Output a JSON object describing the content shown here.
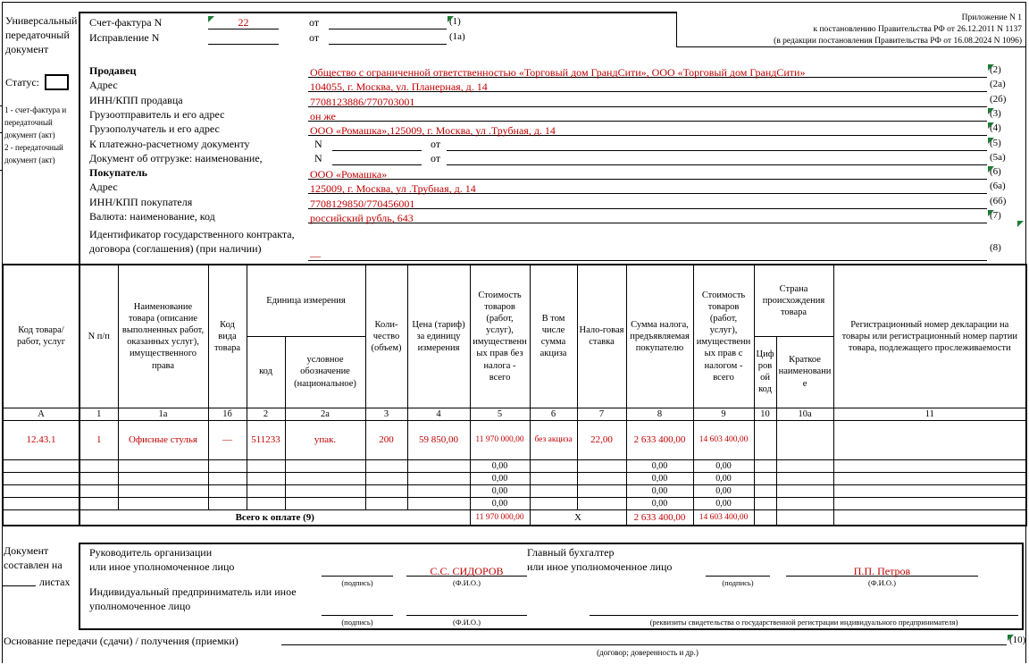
{
  "colors": {
    "value_red": "#C00000",
    "flag_green": "#1E7B34"
  },
  "sidebar": {
    "title": "Универсальный передаточный документ",
    "status_label": "Статус:",
    "status_value": "",
    "note_1": "1 - счет-фактура и передаточный документ (акт)",
    "note_2": "2 - передаточный документ (акт)"
  },
  "annotation": {
    "line_1": "Приложение N 1",
    "line_2": "к постановлению Правительства РФ от 26.12.2011 N 1137",
    "line_3": "(в редакции постановления Правительства РФ от 16.08.2024 N 1096)"
  },
  "invoice": {
    "label": "Счет-фактура N",
    "number": "22",
    "from_label": "от",
    "date": "",
    "marker": "(1)",
    "correction_label": "Исправление N",
    "correction_number": "",
    "correction_from_label": "от",
    "correction_date": "",
    "correction_marker": "(1а)"
  },
  "parties": {
    "rows": [
      {
        "label": "Продавец",
        "bold": true,
        "value": "Общество с ограниченной ответственностью «Торговый дом ГрандСити», ООО «Торговый дом ГрандСити»",
        "marker": "(2)",
        "flag": true
      },
      {
        "label": "Адрес",
        "value": "104055, г. Москва, ул. Планерная, д. 14",
        "marker": "(2а)"
      },
      {
        "label": "ИНН/КПП продавца",
        "value": "7708123886/770703001",
        "marker": "(2б)"
      },
      {
        "label": "Грузоотправитель и его адрес",
        "value": "он же",
        "marker": "(3)",
        "flag": true
      },
      {
        "label": "Грузополучатель и его адрес",
        "value": "ООО «Ромашка»,125009, г. Москва, ул .Трубная, д. 14",
        "marker": "(4)",
        "flag": true
      },
      {
        "label": "К платежно-расчетному документу",
        "type": "nfrom",
        "n_label": "N",
        "from_label": "от",
        "marker": "(5)",
        "flag": true
      },
      {
        "label": "Документ об отгрузке: наименование,",
        "type": "nfrom",
        "n_label": "N",
        "from_label": "от",
        "marker": "(5а)"
      },
      {
        "label": "Покупатель",
        "bold": true,
        "value": "ООО «Ромашка»",
        "marker": "(6)",
        "flag": true
      },
      {
        "label": "Адрес",
        "value": "125009, г. Москва, ул .Трубная, д. 14",
        "marker": "(6а)"
      },
      {
        "label": "ИНН/КПП покупателя",
        "value": "7708129850/770456001",
        "marker": "(6б)"
      },
      {
        "label": "Валюта: наименование, код",
        "value": "российский рубль, 643",
        "marker": "(7)",
        "flag": true
      }
    ],
    "contract_label_1": "Идентификатор государственного контракта,",
    "contract_label_2": "договора (соглашения) (при наличии)",
    "contract_value": "—",
    "contract_marker": "(8)"
  },
  "table": {
    "headers": {
      "col_a": "Код товара/ работ, услуг",
      "col_1": "N п/п",
      "col_1a": "Наименование товара (описание выполненных работ, оказанных услуг), имущественного права",
      "col_1b": "Код вида товара",
      "unit_group": "Единица измерения",
      "col_2": "код",
      "col_2a": "условное обозначение (национальное)",
      "col_3": "Коли-чество (объем)",
      "col_4": "Цена (тариф) за единицу измерения",
      "col_5": "Стоимость товаров (работ, услуг), имущественных прав без налога - всего",
      "col_6": "В том числе сумма акциза",
      "col_7": "Нало-говая ставка",
      "col_8": "Сумма налога, предъявляемая покупателю",
      "col_9": "Стоимость товаров (работ, услуг), имущественных прав с налогом - всего",
      "country_group": "Страна происхождения товара",
      "col_10": "Цифровой код",
      "col_10a": "Краткое наименование",
      "col_11": "Регистрационный номер декларации на товары или регистрационный номер партии товара, подлежащего прослеживаемости"
    },
    "col_numbers": [
      "А",
      "1",
      "1а",
      "1б",
      "2",
      "2а",
      "3",
      "4",
      "5",
      "6",
      "7",
      "8",
      "9",
      "10",
      "10а",
      "11"
    ],
    "number_row_flag_indices": [
      1,
      4,
      6,
      7,
      10
    ],
    "data_row_flag_indices": [
      1,
      4
    ],
    "row": {
      "code": "12.43.1",
      "num": "1",
      "name": "Офисные стулья",
      "kind_code": "—",
      "unit_code": "511233",
      "unit_name": "упак.",
      "qty": "200",
      "price": "59 850,00",
      "cost_wo_tax": "11 970 000,00",
      "excise": "без акциза",
      "tax_rate": "22,00",
      "tax_amount": "2 633 400,00",
      "cost_w_tax": "14 603 400,00",
      "country_code": "",
      "country_name": "",
      "reg_number": ""
    },
    "empty_rows_count": 4,
    "zero": "0,00",
    "total": {
      "label": "Всего к оплате (9)",
      "cost_wo_tax": "11 970 000,00",
      "x": "Х",
      "tax_amount": "2 633 400,00",
      "cost_w_tax": "14 603 400,00"
    }
  },
  "footer": {
    "sheets_line_1": "Документ",
    "sheets_line_2": "составлен на",
    "sheets_suffix": "листах",
    "director_label_1": "Руководитель организации",
    "director_label_2": "или иное уполномоченное лицо",
    "director_name": "С.С. СИДОРОВ",
    "accountant_label_1": "Главный бухгалтер",
    "accountant_label_2": "или иное уполномоченное лицо",
    "accountant_name": "П.П. Петров",
    "entrepreneur_label_1": "Индивидуальный предприниматель или иное",
    "entrepreneur_label_2": "уполномоченное лицо",
    "sign_caption": "(подпись)",
    "name_caption": "(Ф.И.О.)",
    "reg_caption": "(реквизиты свидетельства о государственной регистрации индивидуального предпринимателя)",
    "basis_label": "Основание передачи (сдачи) / получения (приемки)",
    "basis_marker": "(10)",
    "basis_caption": "(договор; доверенность и др.)"
  }
}
